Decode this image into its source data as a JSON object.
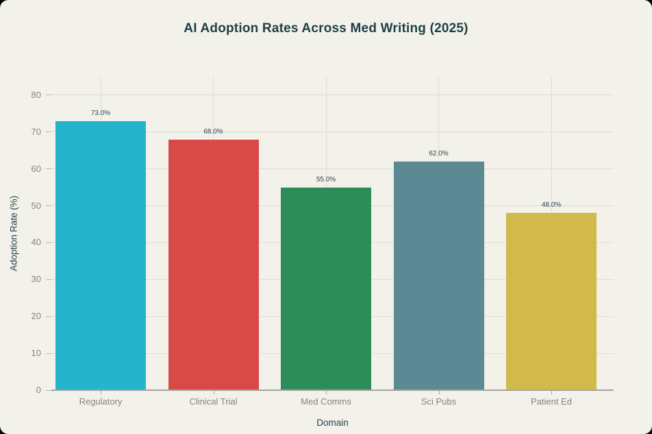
{
  "window": {
    "outer_background": "#000000"
  },
  "panel": {
    "background": "#F2F1EA",
    "title_color": "#1E3F46",
    "axis_title_color": "#25454B",
    "tick_label_color": "#85837D",
    "gridline_color": "#DFDDD5",
    "axis_line_color": "#A6A49C"
  },
  "chart_data": {
    "type": "bar",
    "title": "AI Adoption Rates Across Med Writing (2025)",
    "xlabel": "Domain",
    "ylabel": "Adoption Rate (%)",
    "categories": [
      "Regulatory",
      "Clinical Trial",
      "Med Comms",
      "Sci Pubs",
      "Patient Ed"
    ],
    "values": [
      73,
      68,
      55,
      62,
      48
    ],
    "value_labels": [
      "73.0%",
      "68.0%",
      "55.0%",
      "62.0%",
      "48.0%"
    ],
    "bar_colors": [
      "#24B5CC",
      "#D84A47",
      "#2E8C58",
      "#5C8A94",
      "#D2B94C"
    ],
    "ylim": [
      0,
      85
    ],
    "yticks": [
      0,
      10,
      20,
      30,
      40,
      50,
      60,
      70,
      80
    ],
    "grid": true,
    "legend": "none"
  }
}
